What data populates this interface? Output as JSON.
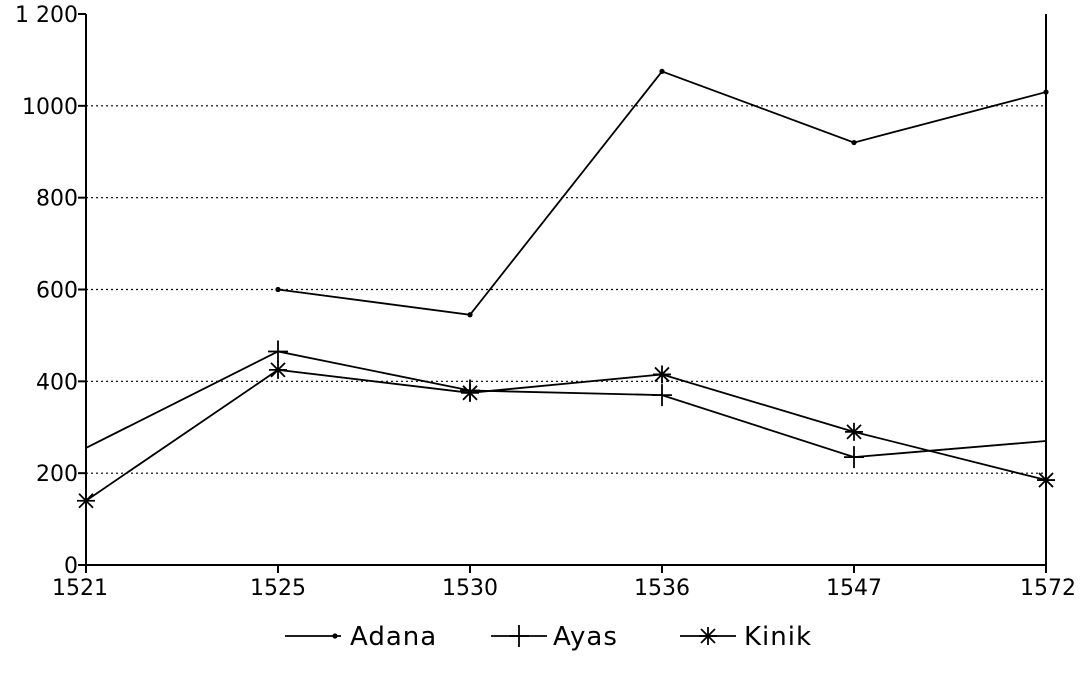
{
  "chart_data": {
    "type": "line",
    "x": [
      "1521",
      "1525",
      "1530",
      "1536",
      "1547",
      "1572"
    ],
    "ylim": [
      0,
      1200
    ],
    "y_ticks": [
      "0",
      "200",
      "400",
      "600",
      "800",
      "1000",
      "1 200"
    ],
    "y_tick_values": [
      0,
      200,
      400,
      600,
      800,
      1000,
      1200
    ],
    "grid": "horizontal dotted",
    "legend_position": "bottom",
    "series": [
      {
        "name": "Adana",
        "marker": "dot",
        "values": [
          null,
          600,
          545,
          1075,
          920,
          1030
        ]
      },
      {
        "name": "Ayas",
        "marker": "plus",
        "values": [
          255,
          465,
          380,
          370,
          235,
          270
        ]
      },
      {
        "name": "Kinik",
        "marker": "asterisk",
        "values": [
          140,
          425,
          375,
          415,
          290,
          185
        ]
      }
    ]
  }
}
